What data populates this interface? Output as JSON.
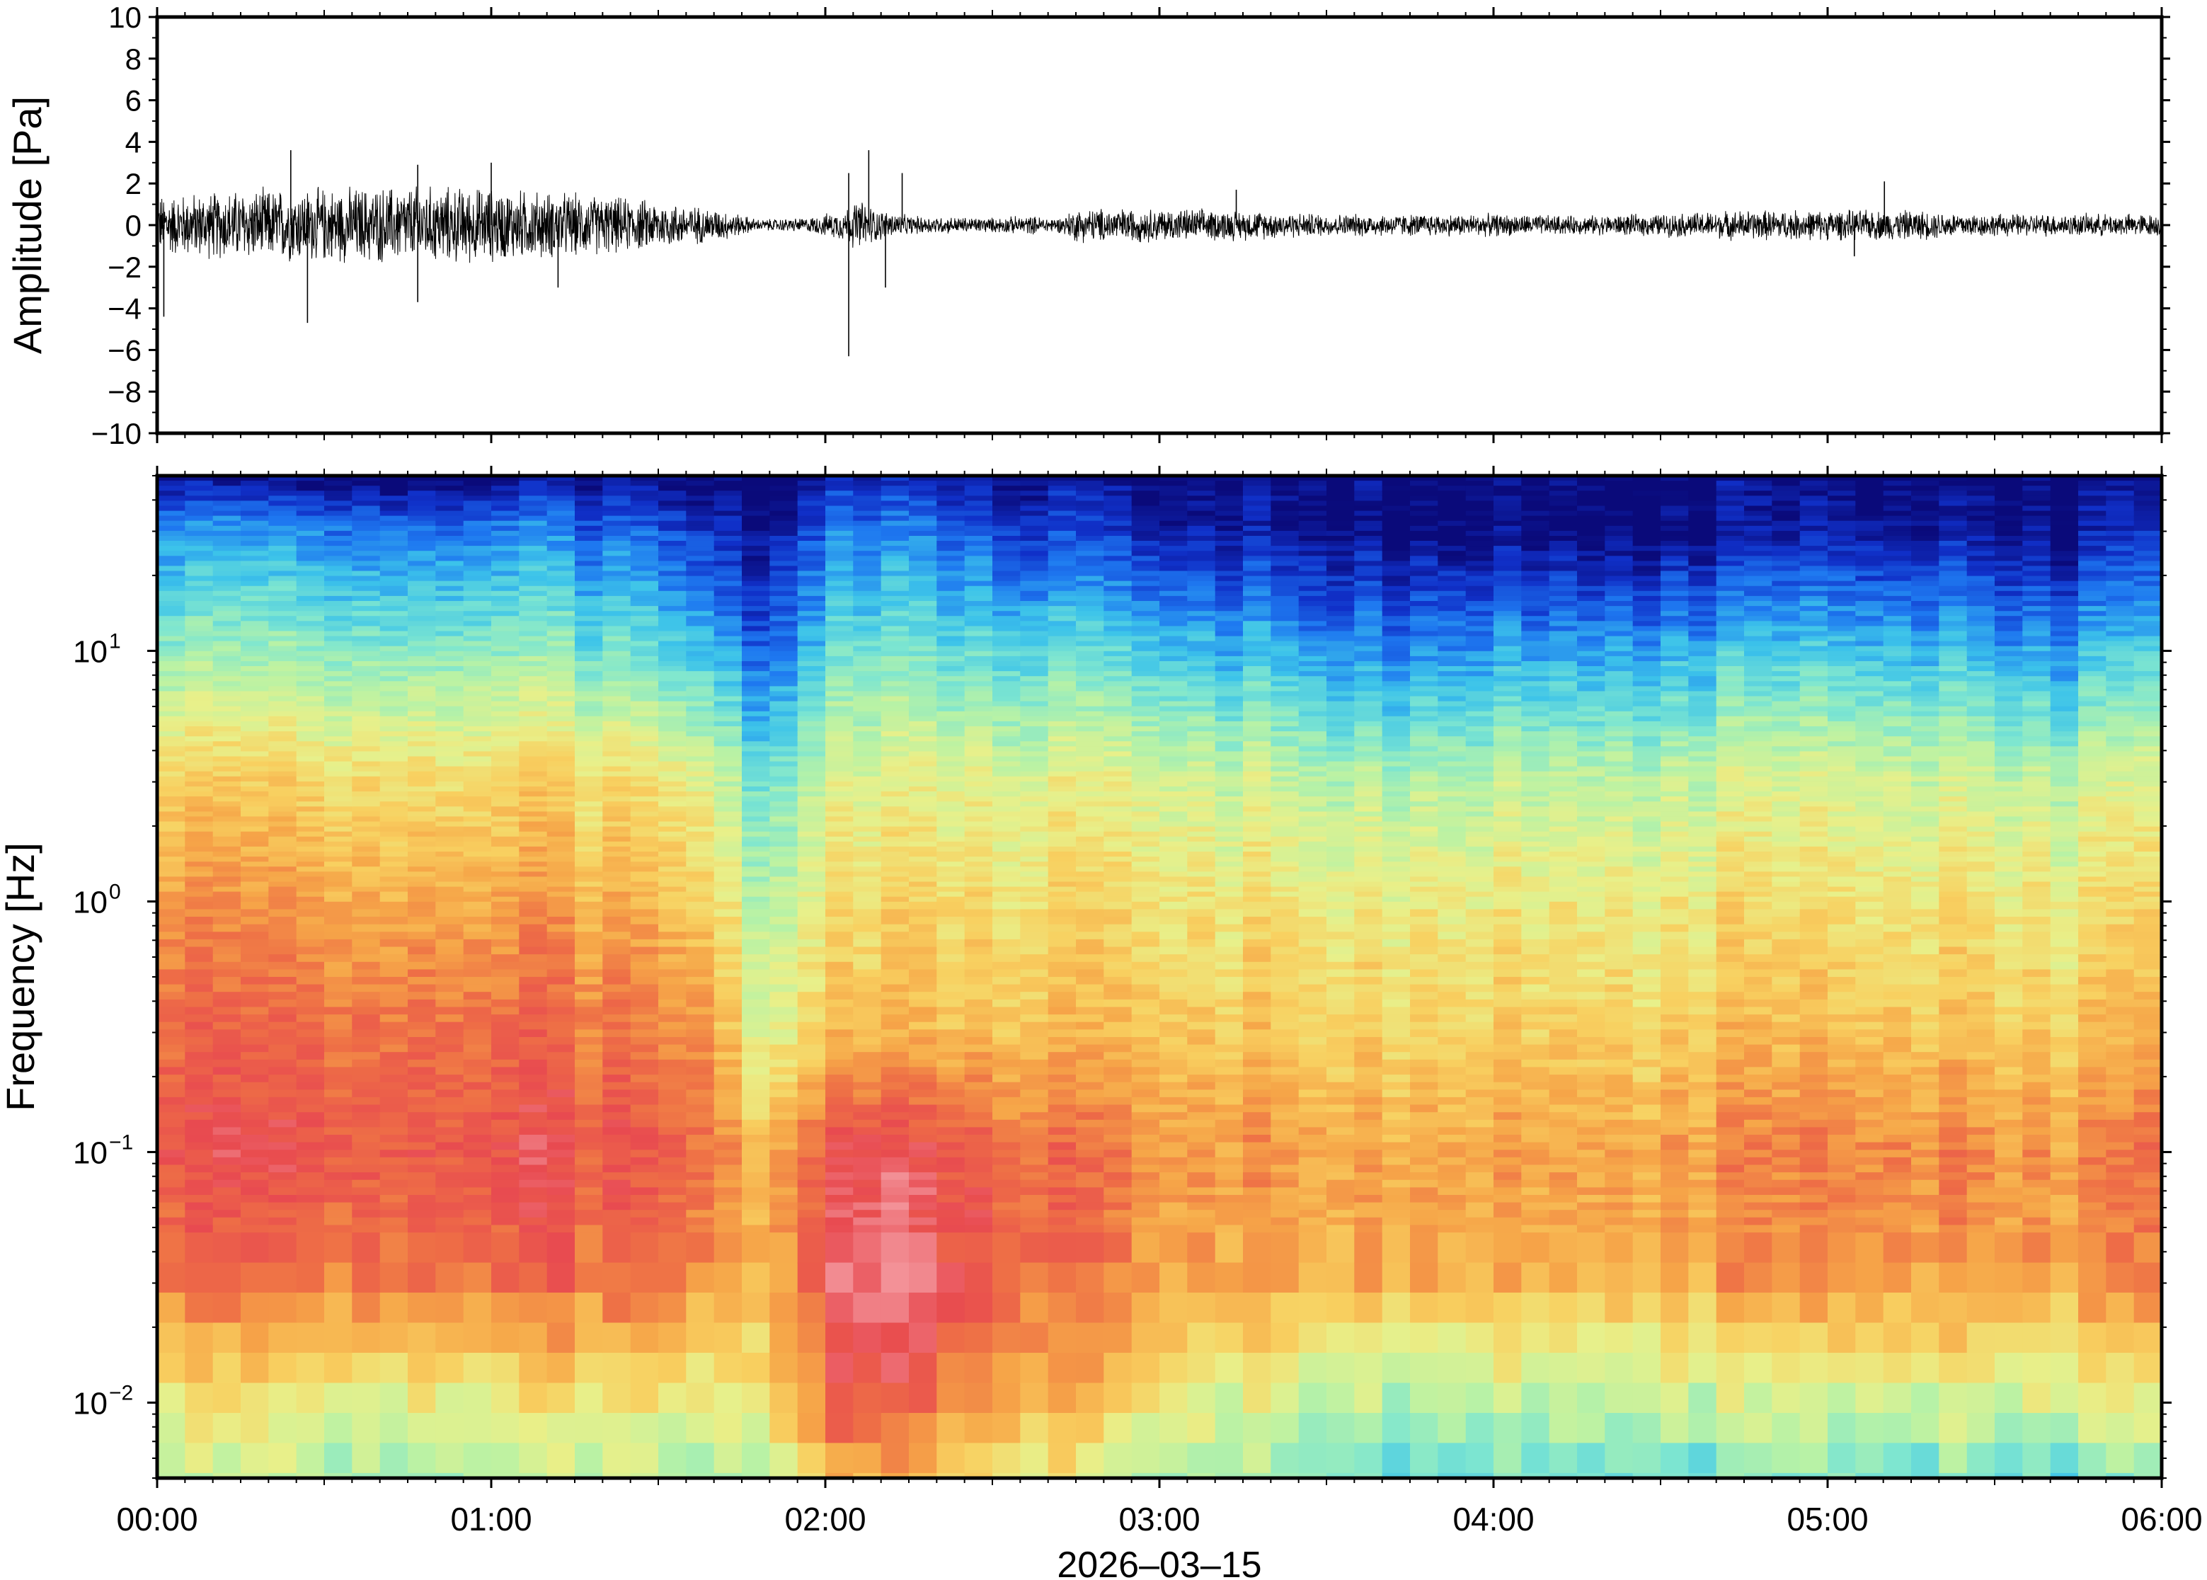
{
  "chart_data": [
    {
      "type": "line",
      "ylabel": "Amplitude [Pa]",
      "ylim": [
        -10,
        10
      ],
      "yticks": [
        10,
        8,
        6,
        4,
        2,
        0,
        -2,
        -4,
        -6,
        -8,
        -10
      ],
      "ytick_labels": [
        "10",
        "8",
        "6",
        "4",
        "2",
        "0",
        "−2",
        "−4",
        "−6",
        "−8",
        "−10"
      ],
      "grid": false,
      "series": [
        {
          "x_hours": [
            0,
            0.25,
            0.5,
            0.75,
            1.0,
            1.25,
            1.5,
            1.7,
            1.8,
            1.95,
            2.05,
            2.1,
            2.15,
            2.25,
            2.5,
            2.6,
            2.7,
            2.75,
            3.0,
            3.25,
            3.5,
            3.75,
            4.0,
            4.25,
            4.5,
            4.75,
            5.0,
            5.25,
            5.5,
            5.75,
            6.0
          ],
          "envelope_upper": [
            1.6,
            1.9,
            2.0,
            2.1,
            2.0,
            1.7,
            1.3,
            0.8,
            0.3,
            0.4,
            0.8,
            1.4,
            0.9,
            0.5,
            0.4,
            0.5,
            0.4,
            0.9,
            0.9,
            0.8,
            0.6,
            0.6,
            0.6,
            0.5,
            0.6,
            0.8,
            0.8,
            0.8,
            0.6,
            0.6,
            0.6
          ],
          "spikes": [
            {
              "x_hours": 0.02,
              "y": -4.4
            },
            {
              "x_hours": 0.45,
              "y": -4.7
            },
            {
              "x_hours": 0.4,
              "y": 3.6
            },
            {
              "x_hours": 0.78,
              "y": 2.9
            },
            {
              "x_hours": 0.78,
              "y": -3.7
            },
            {
              "x_hours": 1.0,
              "y": 3.0
            },
            {
              "x_hours": 1.2,
              "y": -3.0
            },
            {
              "x_hours": 2.07,
              "y": -6.3
            },
            {
              "x_hours": 2.07,
              "y": 2.5
            },
            {
              "x_hours": 2.13,
              "y": 3.6
            },
            {
              "x_hours": 2.18,
              "y": -3.0
            },
            {
              "x_hours": 2.23,
              "y": 2.5
            },
            {
              "x_hours": 3.23,
              "y": 1.7
            },
            {
              "x_hours": 5.17,
              "y": 2.1
            },
            {
              "x_hours": 5.08,
              "y": -1.5
            }
          ]
        }
      ]
    },
    {
      "type": "heatmap",
      "ylabel": "Frequency [Hz]",
      "xlabel": "2026–03–15",
      "yscale": "log",
      "ylim": [
        0.005,
        50
      ],
      "ytick_labels": [
        {
          "base": "10",
          "exp": "1",
          "value": 10
        },
        {
          "base": "10",
          "exp": "0",
          "value": 1
        },
        {
          "base": "10",
          "exp": "−1",
          "value": 0.1
        },
        {
          "base": "10",
          "exp": "−2",
          "value": 0.01
        }
      ],
      "xlim_hours": [
        0,
        6
      ],
      "xtick_labels": [
        "00:00",
        "01:00",
        "02:00",
        "03:00",
        "04:00",
        "05:00",
        "06:00"
      ],
      "colormap": [
        "#0a0a7a",
        "#1030c8",
        "#1e78f0",
        "#3cc3ea",
        "#7ee6d0",
        "#b9f2a5",
        "#e8f08a",
        "#f8d060",
        "#f6a548",
        "#ee6e46",
        "#e84a50",
        "#f49aa0"
      ],
      "intensity_profiles": [
        {
          "x_hours": 0.0,
          "level_at_log_freq": {
            "1.7": 0.0,
            "1.5": 0.2,
            "1.0": 0.4,
            "0.5": 0.62,
            "0.0": 0.74,
            "-0.5": 0.82,
            "-1.0": 0.88,
            "-1.5": 0.8,
            "-2.0": 0.56,
            "-2.3": 0.45
          }
        },
        {
          "x_hours": 1.0,
          "level_at_log_freq": {
            "1.7": 0.0,
            "1.5": 0.2,
            "1.0": 0.42,
            "0.5": 0.63,
            "0.0": 0.74,
            "-0.5": 0.85,
            "-1.0": 0.9,
            "-1.5": 0.84,
            "-2.0": 0.58,
            "-2.3": 0.46
          }
        },
        {
          "x_hours": 1.65,
          "level_at_log_freq": {
            "1.7": 0.0,
            "1.5": 0.1,
            "1.0": 0.3,
            "0.5": 0.55,
            "0.0": 0.66,
            "-0.5": 0.76,
            "-1.0": 0.84,
            "-1.5": 0.78,
            "-2.0": 0.55,
            "-2.3": 0.44
          }
        },
        {
          "x_hours": 1.8,
          "level_at_log_freq": {
            "1.7": 0.0,
            "1.5": 0.05,
            "1.0": 0.18,
            "0.5": 0.38,
            "0.0": 0.48,
            "-0.5": 0.55,
            "-1.0": 0.7,
            "-1.5": 0.72,
            "-2.0": 0.6,
            "-2.3": 0.5
          }
        },
        {
          "x_hours": 2.08,
          "level_at_log_freq": {
            "1.7": 0.05,
            "1.5": 0.18,
            "1.0": 0.35,
            "0.5": 0.52,
            "0.0": 0.6,
            "-0.5": 0.66,
            "-1.0": 0.92,
            "-1.5": 0.97,
            "-2.0": 0.88,
            "-2.3": 0.7
          }
        },
        {
          "x_hours": 3.0,
          "level_at_log_freq": {
            "1.7": 0.0,
            "1.5": 0.05,
            "1.0": 0.3,
            "0.5": 0.52,
            "0.0": 0.6,
            "-0.5": 0.66,
            "-1.0": 0.76,
            "-1.5": 0.74,
            "-2.0": 0.58,
            "-2.3": 0.46
          }
        },
        {
          "x_hours": 3.6,
          "level_at_log_freq": {
            "1.7": 0.0,
            "1.5": 0.0,
            "1.0": 0.2,
            "0.5": 0.44,
            "0.0": 0.56,
            "-0.5": 0.62,
            "-1.0": 0.72,
            "-1.5": 0.7,
            "-2.0": 0.44,
            "-2.3": 0.34
          }
        },
        {
          "x_hours": 4.5,
          "level_at_log_freq": {
            "1.7": 0.0,
            "1.5": 0.0,
            "1.0": 0.25,
            "0.5": 0.48,
            "0.0": 0.58,
            "-0.5": 0.64,
            "-1.0": 0.74,
            "-1.5": 0.72,
            "-2.0": 0.48,
            "-2.3": 0.36
          }
        },
        {
          "x_hours": 5.1,
          "level_at_log_freq": {
            "1.7": 0.0,
            "1.5": 0.05,
            "1.0": 0.3,
            "0.5": 0.52,
            "0.0": 0.6,
            "-0.5": 0.68,
            "-1.0": 0.8,
            "-1.5": 0.76,
            "-2.0": 0.5,
            "-2.3": 0.38
          }
        },
        {
          "x_hours": 5.6,
          "level_at_log_freq": {
            "1.7": 0.0,
            "1.5": 0.0,
            "1.0": 0.22,
            "0.5": 0.46,
            "0.0": 0.57,
            "-0.5": 0.63,
            "-1.0": 0.74,
            "-1.5": 0.72,
            "-2.0": 0.5,
            "-2.3": 0.34
          }
        },
        {
          "x_hours": 6.0,
          "level_at_log_freq": {
            "1.7": 0.0,
            "1.5": 0.05,
            "1.0": 0.28,
            "0.5": 0.5,
            "0.0": 0.6,
            "-0.5": 0.66,
            "-1.0": 0.8,
            "-1.5": 0.76,
            "-2.0": 0.52,
            "-2.3": 0.36
          }
        }
      ]
    }
  ]
}
